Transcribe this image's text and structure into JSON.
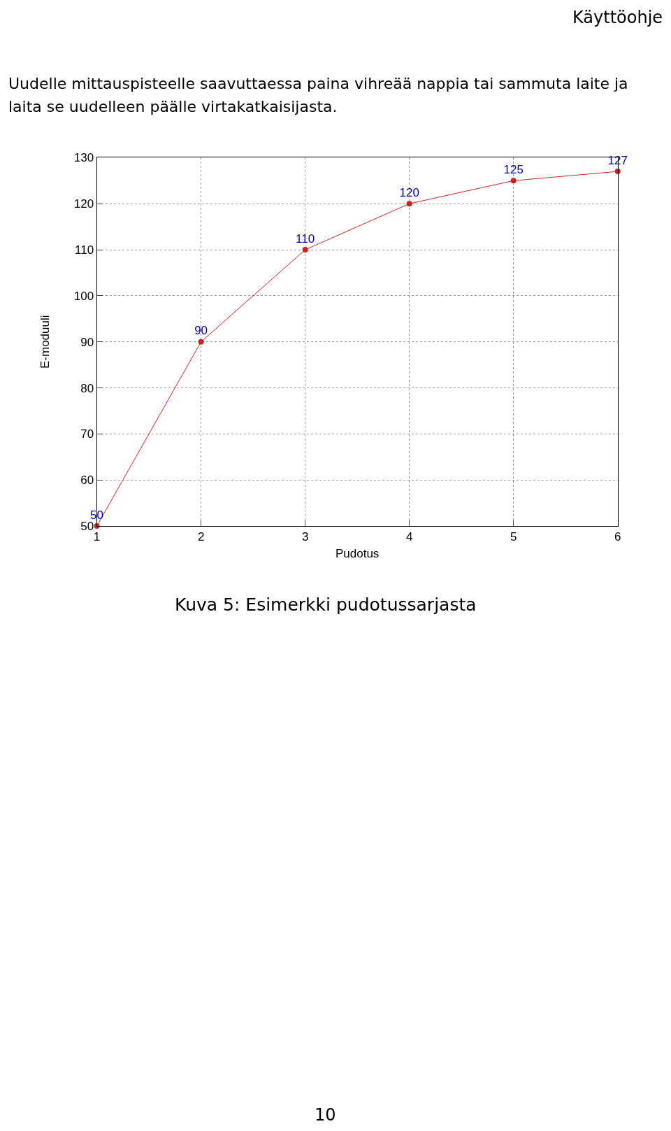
{
  "chart_data": {
    "type": "line",
    "xlabel": "Pudotus",
    "ylabel": "E-moduuli",
    "x": [
      1,
      2,
      3,
      4,
      5,
      6
    ],
    "series": [
      {
        "color": "#cc2222",
        "values": [
          50,
          90,
          110,
          120,
          125,
          127
        ]
      }
    ],
    "xlim": [
      1,
      6
    ],
    "xticks": [
      1,
      2,
      3,
      4,
      5,
      6
    ],
    "ylim": [
      50,
      130
    ],
    "yticks": [
      50,
      60,
      70,
      80,
      90,
      100,
      110,
      120,
      130
    ],
    "grid": true,
    "marker": "circle",
    "line_style": "solid",
    "data_labels": true,
    "annotations": [
      "Käyttöohje",
      "Uudelle mittauspisteelle saavuttaessa paina vihreää nappia tai sammuta laite ja",
      "laita se uudelleen päälle virtakatkaisijasta.",
      "Kuva 5: Esimerkki pudotussarjasta",
      "10"
    ]
  }
}
